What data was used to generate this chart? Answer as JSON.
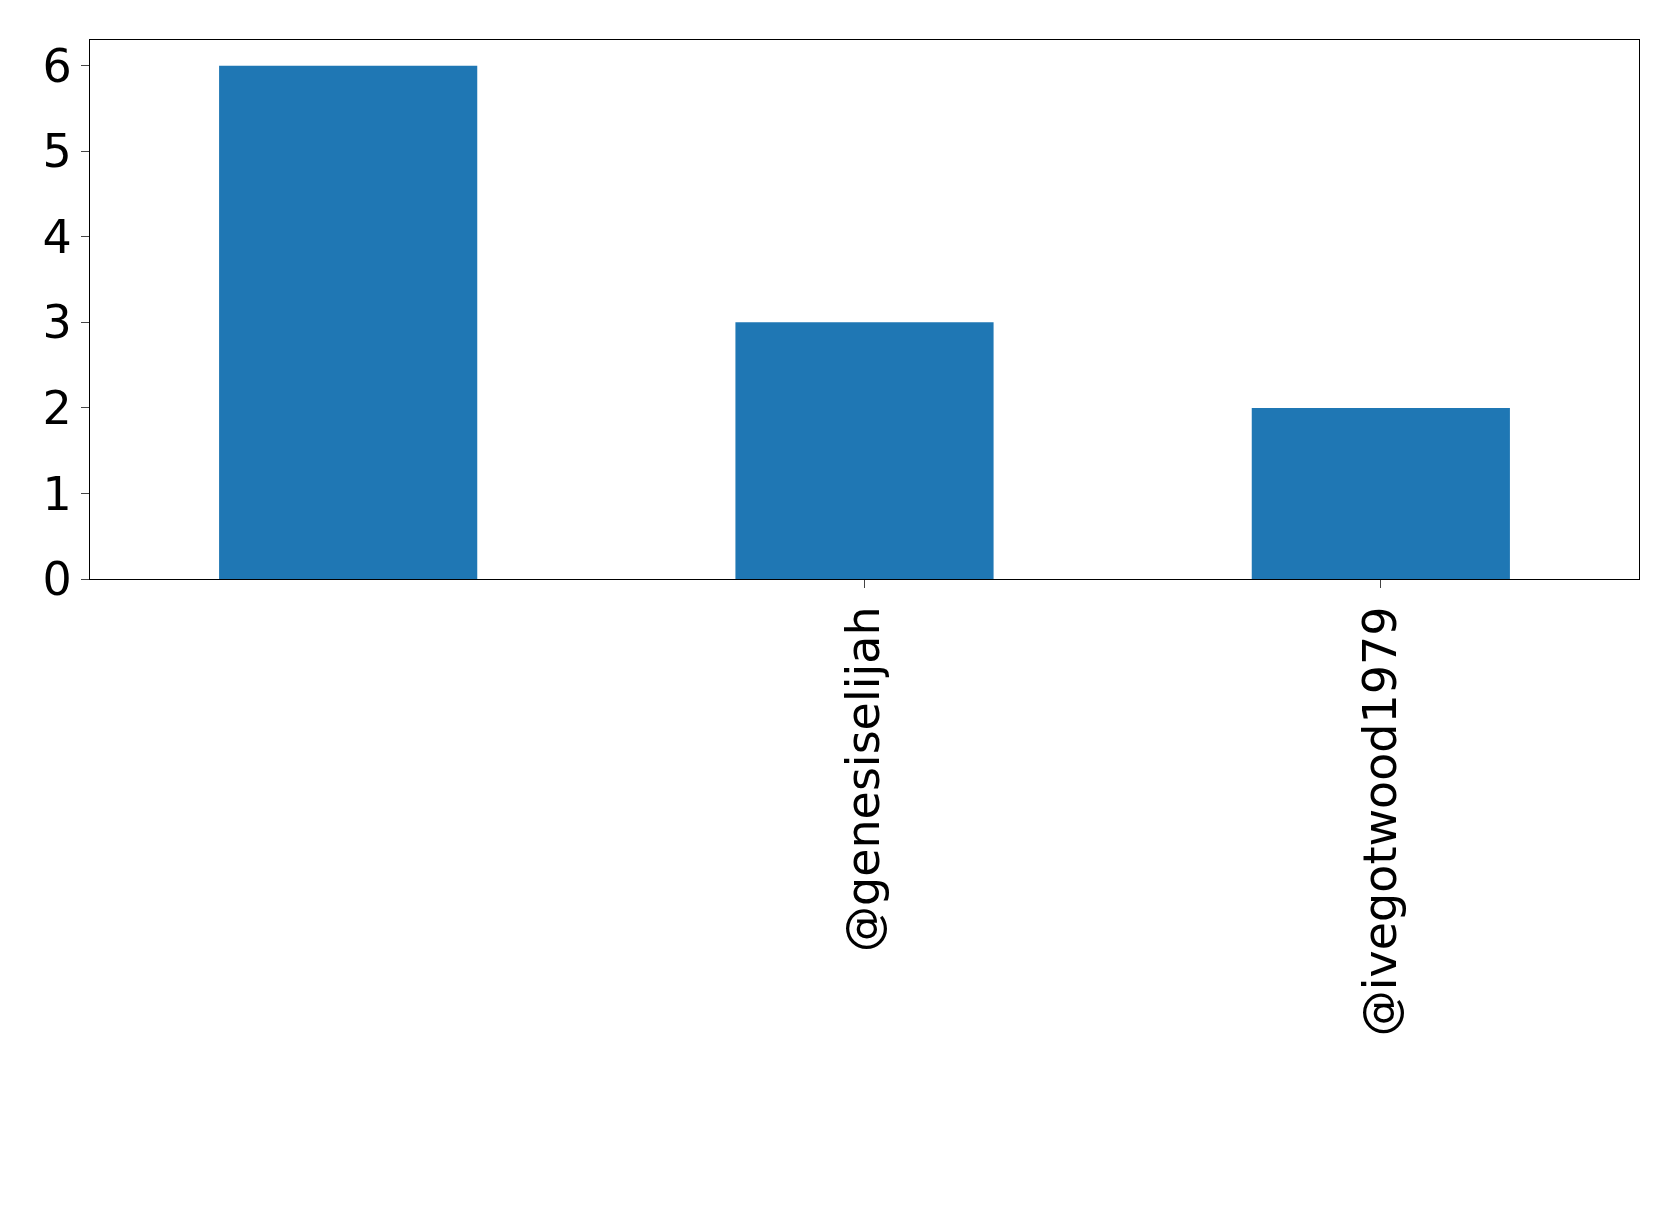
{
  "chart_data": {
    "type": "bar",
    "categories": [
      null,
      "@genesiselijah",
      "@ivegotwood1979"
    ],
    "values": [
      6,
      3,
      2
    ],
    "color": "#1f77b4",
    "ylim": [
      0,
      6.3
    ],
    "yticks": [
      0,
      1,
      2,
      3,
      4,
      5,
      6
    ],
    "grid": false,
    "legend": false
  }
}
